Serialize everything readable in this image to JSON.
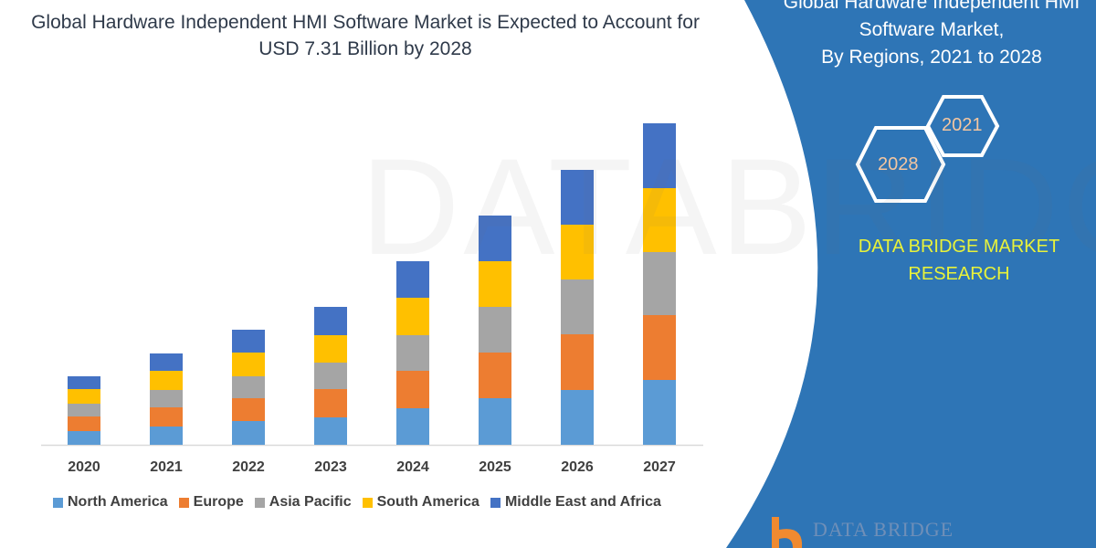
{
  "chart_data": {
    "type": "bar",
    "stacked": true,
    "title": "Global Hardware Independent HMI Software Market is Expected to Account for USD 7.31 Billion by 2028",
    "categories": [
      "2020",
      "2021",
      "2022",
      "2023",
      "2024",
      "2025",
      "2026",
      "2027"
    ],
    "series": [
      {
        "name": "North America",
        "color": "#5b9bd5",
        "values": [
          1.5,
          2.0,
          2.6,
          3.0,
          4.0,
          5.1,
          6.0,
          7.1
        ]
      },
      {
        "name": "Europe",
        "color": "#ed7d31",
        "values": [
          1.6,
          2.1,
          2.5,
          3.1,
          4.1,
          5.0,
          6.1,
          7.1
        ]
      },
      {
        "name": "Asia Pacific",
        "color": "#a5a5a5",
        "values": [
          1.4,
          1.9,
          2.4,
          2.9,
          3.9,
          5.0,
          6.0,
          6.9
        ]
      },
      {
        "name": "South America",
        "color": "#ffc000",
        "values": [
          1.6,
          2.1,
          2.6,
          3.0,
          4.1,
          5.0,
          6.0,
          7.0
        ]
      },
      {
        "name": "Middle East and Africa",
        "color": "#4472c4",
        "values": [
          1.4,
          1.9,
          2.5,
          3.1,
          4.0,
          5.0,
          6.0,
          7.1
        ]
      }
    ],
    "y_axis_shown": false,
    "grid": false,
    "legend_placement": "bottom"
  },
  "side_panel": {
    "title_line1": "Global Hardware Independent HMI",
    "title_line2": "Software Market,",
    "title_line3": "By Regions, 2021 to 2028",
    "hex_year_1": "2021",
    "hex_year_2": "2028",
    "brand_line1": "DATA BRIDGE MARKET",
    "brand_line2": "RESEARCH",
    "panel_color": "#2e75b6"
  },
  "logo": {
    "text": "DATA BRIDGE"
  },
  "watermark": "DATABRIDGE"
}
